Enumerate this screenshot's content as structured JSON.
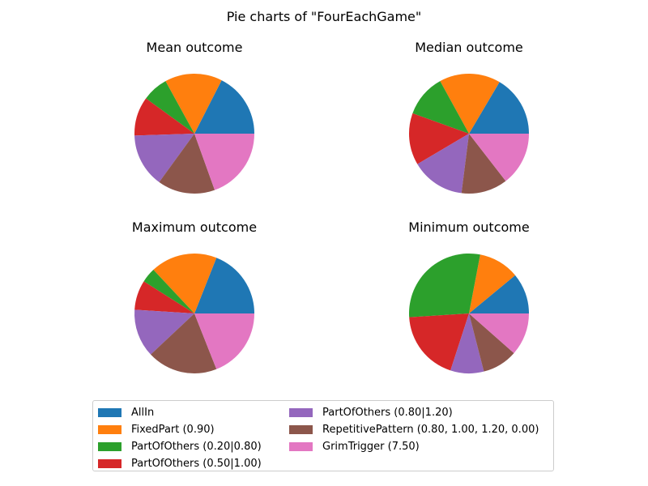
{
  "figure_title": "Pie charts of \"FourEachGame\"",
  "legend": {
    "placement": "bottom-center",
    "entries": [
      {
        "label": "AllIn",
        "color": "#1f77b4"
      },
      {
        "label": "FixedPart (0.90)",
        "color": "#ff7f0e"
      },
      {
        "label": "PartOfOthers (0.20|0.80)",
        "color": "#2ca02c"
      },
      {
        "label": "PartOfOthers (0.50|1.00)",
        "color": "#d62728"
      },
      {
        "label": "PartOfOthers (0.80|1.20)",
        "color": "#9467bd"
      },
      {
        "label": "RepetitivePattern (0.80, 1.00, 1.20, 0.00)",
        "color": "#8c564b"
      },
      {
        "label": "GrimTrigger (7.50)",
        "color": "#e377c2"
      }
    ]
  },
  "chart_data": [
    {
      "type": "pie",
      "title": "Mean outcome",
      "labels": [
        "AllIn",
        "FixedPart (0.90)",
        "PartOfOthers (0.20|0.80)",
        "PartOfOthers (0.50|1.00)",
        "PartOfOthers (0.80|1.20)",
        "RepetitivePattern (0.80, 1.00, 1.20, 0.00)",
        "GrimTrigger (7.50)"
      ],
      "values": [
        0.175,
        0.155,
        0.07,
        0.105,
        0.145,
        0.155,
        0.195
      ]
    },
    {
      "type": "pie",
      "title": "Median outcome",
      "labels": [
        "AllIn",
        "FixedPart (0.90)",
        "PartOfOthers (0.20|0.80)",
        "PartOfOthers (0.50|1.00)",
        "PartOfOthers (0.80|1.20)",
        "RepetitivePattern (0.80, 1.00, 1.20, 0.00)",
        "GrimTrigger (7.50)"
      ],
      "values": [
        0.165,
        0.165,
        0.115,
        0.14,
        0.145,
        0.125,
        0.145
      ]
    },
    {
      "type": "pie",
      "title": "Maximum outcome",
      "labels": [
        "AllIn",
        "FixedPart (0.90)",
        "PartOfOthers (0.20|0.80)",
        "PartOfOthers (0.50|1.00)",
        "PartOfOthers (0.80|1.20)",
        "RepetitivePattern (0.80, 1.00, 1.20, 0.00)",
        "GrimTrigger (7.50)"
      ],
      "values": [
        0.19,
        0.18,
        0.04,
        0.08,
        0.13,
        0.19,
        0.19
      ]
    },
    {
      "type": "pie",
      "title": "Minimum outcome",
      "labels": [
        "AllIn",
        "FixedPart (0.90)",
        "PartOfOthers (0.20|0.80)",
        "PartOfOthers (0.50|1.00)",
        "PartOfOthers (0.80|1.20)",
        "RepetitivePattern (0.80, 1.00, 1.20, 0.00)",
        "GrimTrigger (7.50)"
      ],
      "values": [
        0.11,
        0.11,
        0.29,
        0.19,
        0.09,
        0.095,
        0.115
      ]
    }
  ]
}
